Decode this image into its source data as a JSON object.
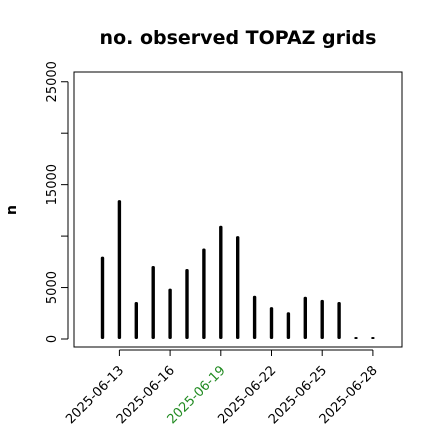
{
  "chart_data": {
    "type": "bar",
    "style": "spike",
    "title": "no. observed TOPAZ grids",
    "xlabel": "",
    "ylabel": "n",
    "x": [
      "2025-06-12",
      "2025-06-13",
      "2025-06-14",
      "2025-06-15",
      "2025-06-16",
      "2025-06-17",
      "2025-06-18",
      "2025-06-19",
      "2025-06-20",
      "2025-06-21",
      "2025-06-22",
      "2025-06-23",
      "2025-06-24",
      "2025-06-25",
      "2025-06-26",
      "2025-06-27",
      "2025-06-28"
    ],
    "values": [
      8000,
      13500,
      3600,
      7100,
      4900,
      6800,
      8800,
      11000,
      10000,
      4200,
      3100,
      2600,
      4100,
      3800,
      3600,
      150,
      150
    ],
    "ylim": [
      -500,
      26000
    ],
    "yticks": [
      0,
      5000,
      10000,
      15000,
      20000,
      25000
    ],
    "ytick_labels": [
      "0",
      "5000",
      "",
      "15000",
      "",
      "25000"
    ],
    "xticks": [
      "2025-06-13",
      "2025-06-16",
      "2025-06-19",
      "2025-06-22",
      "2025-06-25",
      "2025-06-28"
    ],
    "xtick_labels": [
      "2025-06-13",
      "2025-06-16",
      "2025-06-19",
      "2025-06-22",
      "2025-06-25",
      "2025-06-28"
    ],
    "highlighted_tick": "2025-06-19",
    "colors": {
      "bars": "#000000",
      "tick_text": "#000000",
      "highlight_text": "#228B22",
      "axis": "#000000",
      "background": "#ffffff"
    },
    "grid": false,
    "legend": "none"
  }
}
